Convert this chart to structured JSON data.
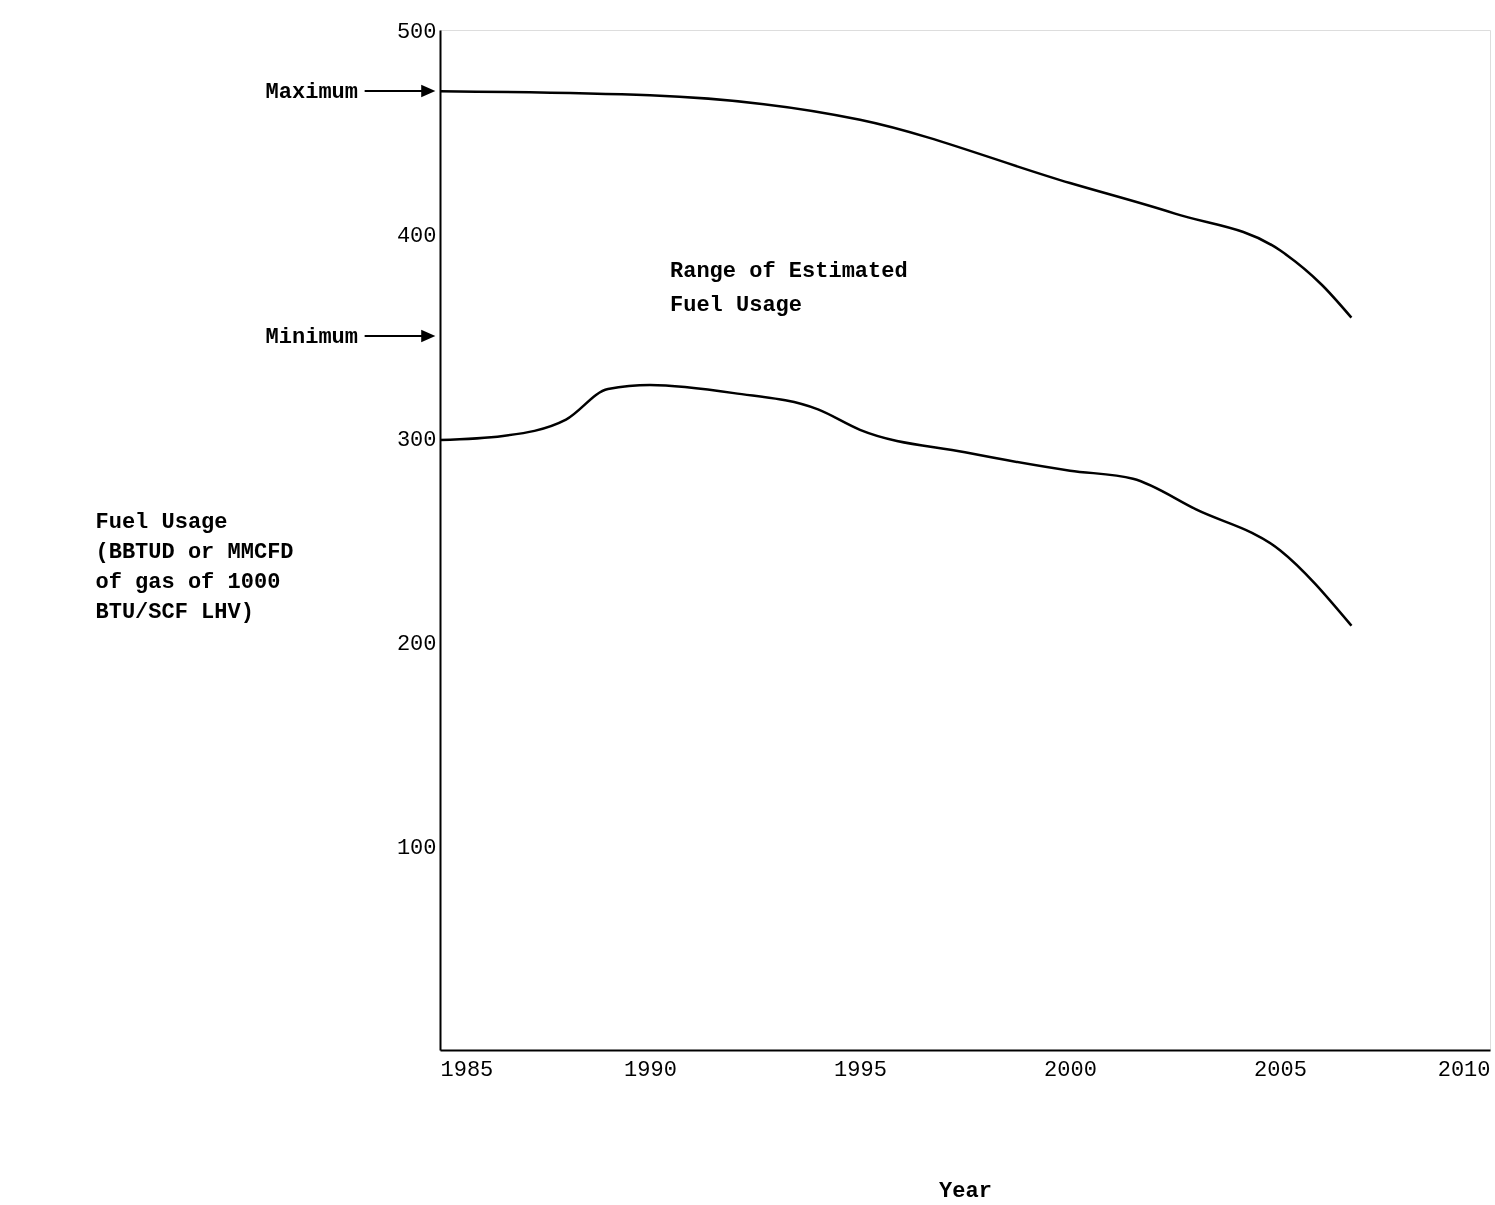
{
  "chart_data": {
    "type": "line",
    "xlabel": "Year",
    "ylabel": "Fuel Usage\n(BBTUD or MMCFD\nof gas of 1000\nBTU/SCF LHV)",
    "xlim": [
      1985,
      2010
    ],
    "xticks": [
      1985,
      1990,
      1995,
      2000,
      2005,
      2010
    ],
    "ylim": [
      0,
      500
    ],
    "yticks": [
      100,
      200,
      300,
      400,
      500
    ],
    "grid": false,
    "line_style": "solid",
    "series": [
      {
        "color": "#000000",
        "x": [
          1985,
          1990,
          1995,
          2000,
          2002.5,
          2005,
          2006,
          2006.7
        ],
        "values": [
          470,
          468,
          456,
          425,
          410,
          392,
          375,
          359
        ]
      },
      {
        "color": "#000000",
        "x": [
          1985,
          1986.5,
          1988,
          1989,
          1990,
          1992,
          1994,
          1995,
          1997.5,
          2000,
          2001.5,
          2003,
          2005,
          2006.7
        ],
        "values": [
          299,
          301,
          309,
          324,
          326,
          322,
          314,
          304,
          293,
          284,
          280,
          265,
          245,
          208
        ]
      }
    ],
    "annotations": [
      "Range of Estimated\nFuel Usage",
      "Maximum",
      "Minimum"
    ]
  }
}
